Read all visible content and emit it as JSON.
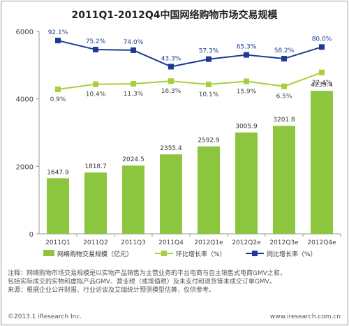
{
  "chart_data": {
    "type": "bar",
    "title": "2011Q1-2012Q4中国网络购物市场交易规模",
    "categories": [
      "2011Q1",
      "2011Q2",
      "2011Q3",
      "2011Q4",
      "2012Q1e",
      "2012Q2e",
      "2012Q3e",
      "2012Q4e"
    ],
    "ylim_left": [
      0,
      6000
    ],
    "yticks_left": [
      "0",
      "2000",
      "4000",
      "6000"
    ],
    "bar_series": {
      "name": "网络购物交易规模（亿元）",
      "values": [
        1647.9,
        1818.7,
        2024.5,
        2355.4,
        2592.9,
        3005.9,
        3201.8,
        4239.4
      ],
      "labels": [
        "1647.9",
        "1818.7",
        "2024.5",
        "2355.4",
        "2592.9",
        "3005.9",
        "3201.8",
        "4239.4"
      ],
      "color": "#8cc63f"
    },
    "line_series": [
      {
        "name": "环比增长率（%）",
        "values": [
          0.9,
          10.4,
          11.3,
          16.3,
          10.1,
          15.9,
          6.5,
          32.4
        ],
        "labels": [
          "0.9%",
          "10.4%",
          "11.3%",
          "16.3%",
          "10.1%",
          "15.9%",
          "6.5%",
          "32.4%"
        ],
        "color": "#a6cf3a"
      },
      {
        "name": "同比增长率（%）",
        "values": [
          92.1,
          75.2,
          74.0,
          43.3,
          57.3,
          65.3,
          58.2,
          80.0
        ],
        "labels": [
          "92.1%",
          "75.2%",
          "74.0%",
          "43.3%",
          "57.3%",
          "65.3%",
          "58.2%",
          "80.0%"
        ],
        "color": "#1f3a93"
      }
    ],
    "legend_position": "bottom",
    "grid": false
  },
  "notes": {
    "line1": "注释：网络购物市场交易规模是以实物产品销售为主营业务的平台电商与自主销售式电商GMV之和，",
    "line2": "包括实际成交的实物和虚拟产品GMV、营业税（或增值税）及未支付和退货等未成交订单GMV。",
    "line3": "来源：根据企业公开财报、行业访谈及艾瑞统计预测模型估算，仅供参考。"
  },
  "footer": {
    "copyright": "©2013.1 iResearch Inc.",
    "website": "www.iresearch.com.cn"
  }
}
